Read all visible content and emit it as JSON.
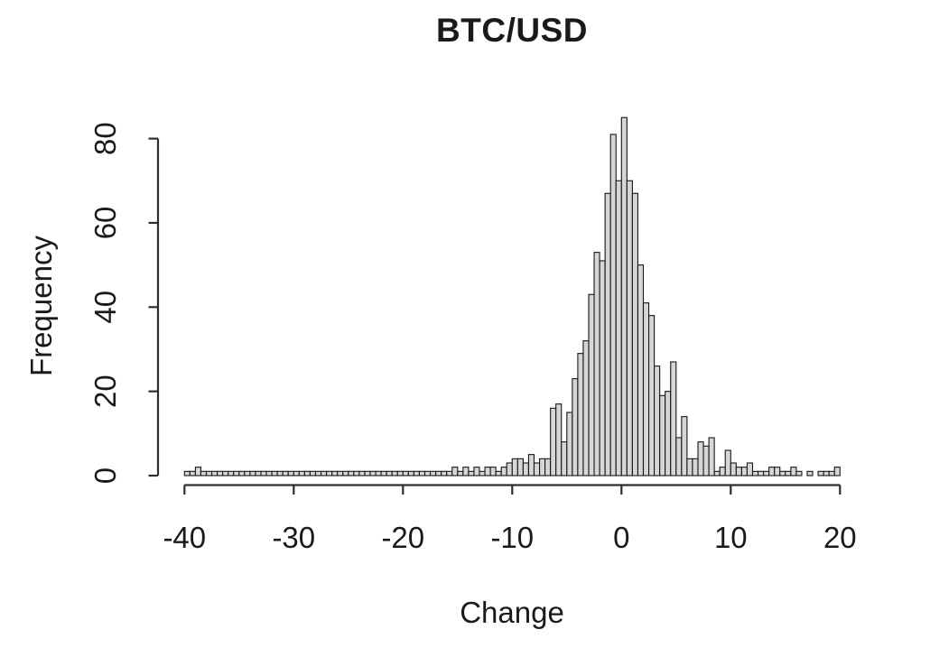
{
  "page": {
    "background": "#ffffff"
  },
  "chart_data": {
    "type": "bar",
    "subtype": "histogram",
    "title": "BTC/USD",
    "xlabel": "Change",
    "ylabel": "Frequency",
    "x_ticks": [
      -40,
      -30,
      -20,
      -10,
      0,
      10,
      20
    ],
    "y_ticks": [
      0,
      20,
      40,
      60,
      80
    ],
    "xlim": [
      -40.5,
      20.5
    ],
    "ylim": [
      0,
      85
    ],
    "grid": false,
    "legend_position": "none",
    "bin_start": -40,
    "bin_width": 0.5,
    "counts": [
      1,
      1,
      2,
      1,
      1,
      1,
      1,
      1,
      1,
      1,
      1,
      1,
      1,
      1,
      1,
      1,
      1,
      1,
      1,
      1,
      1,
      1,
      1,
      1,
      1,
      1,
      1,
      1,
      1,
      1,
      1,
      1,
      1,
      1,
      1,
      1,
      1,
      1,
      1,
      1,
      1,
      1,
      1,
      1,
      1,
      1,
      1,
      1,
      1,
      2,
      1,
      2,
      1,
      2,
      1,
      2,
      2,
      1,
      2,
      3,
      4,
      4,
      3,
      5,
      3,
      4,
      4,
      16,
      17,
      8,
      15,
      23,
      29,
      32,
      43,
      53,
      51,
      67,
      81,
      70,
      85,
      70,
      67,
      50,
      41,
      38,
      26,
      19,
      20,
      27,
      9,
      14,
      4,
      4,
      8,
      7,
      9,
      1,
      2,
      6,
      3,
      2,
      2,
      3,
      1,
      1,
      1,
      2,
      2,
      1,
      1,
      2,
      1,
      0,
      1,
      0,
      1,
      1,
      1,
      2
    ],
    "bar_fill": "#d6d6d6",
    "bar_stroke": "#161616",
    "axis_color": "#2e2e2e",
    "text_color": "#1a1a1a"
  }
}
